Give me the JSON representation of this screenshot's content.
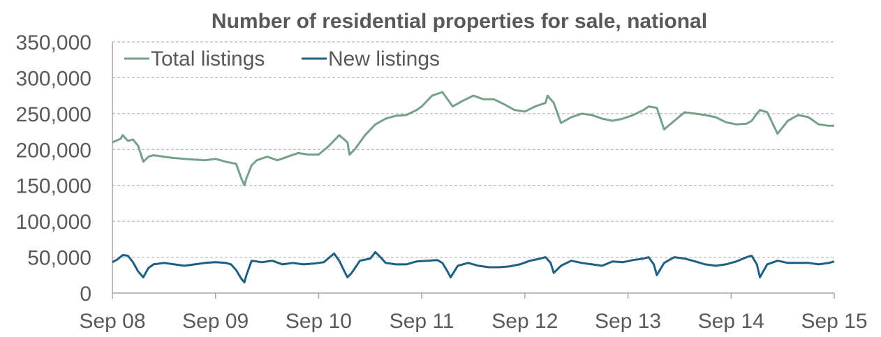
{
  "chart_data": {
    "type": "line",
    "title": "Number of residential properties for sale, national",
    "xlabel": "",
    "ylabel": "",
    "ylim": [
      0,
      350000
    ],
    "yticks": [
      0,
      50000,
      100000,
      150000,
      200000,
      250000,
      300000,
      350000
    ],
    "ytick_labels": [
      "0",
      "50,000",
      "100,000",
      "150,000",
      "200,000",
      "250,000",
      "300,000",
      "350,000"
    ],
    "xlim": [
      0,
      7
    ],
    "xtick_labels": [
      "Sep 08",
      "Sep 09",
      "Sep 10",
      "Sep 11",
      "Sep 12",
      "Sep 13",
      "Sep 14",
      "Sep 15"
    ],
    "grid": true,
    "legend_position": "top-left",
    "series": [
      {
        "name": "Total listings",
        "color": "#76a08a",
        "x": [
          0.0,
          0.08,
          0.1,
          0.15,
          0.2,
          0.25,
          0.3,
          0.35,
          0.4,
          0.5,
          0.6,
          0.7,
          0.8,
          0.9,
          1.0,
          1.1,
          1.2,
          1.25,
          1.28,
          1.3,
          1.35,
          1.4,
          1.5,
          1.6,
          1.7,
          1.8,
          1.9,
          2.0,
          2.1,
          2.2,
          2.28,
          2.3,
          2.35,
          2.45,
          2.55,
          2.65,
          2.75,
          2.85,
          2.95,
          3.0,
          3.1,
          3.2,
          3.3,
          3.4,
          3.5,
          3.6,
          3.7,
          3.8,
          3.9,
          4.0,
          4.1,
          4.2,
          4.22,
          4.28,
          4.35,
          4.45,
          4.55,
          4.65,
          4.75,
          4.85,
          4.95,
          5.05,
          5.15,
          5.2,
          5.28,
          5.35,
          5.45,
          5.55,
          5.65,
          5.75,
          5.85,
          5.95,
          6.05,
          6.15,
          6.2,
          6.25,
          6.28,
          6.35,
          6.45,
          6.55,
          6.65,
          6.75,
          6.85,
          6.95,
          7.0
        ],
        "y": [
          210000,
          215000,
          220000,
          212000,
          214000,
          205000,
          183000,
          190000,
          192000,
          190000,
          188000,
          187000,
          186000,
          185000,
          187000,
          183000,
          180000,
          160000,
          150000,
          160000,
          178000,
          185000,
          190000,
          185000,
          190000,
          195000,
          193000,
          193000,
          205000,
          220000,
          210000,
          193000,
          200000,
          220000,
          235000,
          243000,
          247000,
          248000,
          255000,
          260000,
          275000,
          280000,
          260000,
          268000,
          275000,
          270000,
          270000,
          263000,
          255000,
          253000,
          260000,
          265000,
          275000,
          265000,
          237000,
          245000,
          250000,
          248000,
          243000,
          240000,
          243000,
          248000,
          255000,
          260000,
          258000,
          228000,
          240000,
          252000,
          250000,
          248000,
          245000,
          238000,
          235000,
          236000,
          240000,
          250000,
          255000,
          252000,
          222000,
          240000,
          248000,
          245000,
          235000,
          233000,
          233000
        ]
      },
      {
        "name": "New listings",
        "color": "#1f5f82",
        "x": [
          0.0,
          0.05,
          0.1,
          0.15,
          0.2,
          0.25,
          0.3,
          0.35,
          0.4,
          0.5,
          0.6,
          0.7,
          0.8,
          0.9,
          1.0,
          1.1,
          1.15,
          1.2,
          1.25,
          1.28,
          1.3,
          1.35,
          1.45,
          1.55,
          1.65,
          1.75,
          1.85,
          1.95,
          2.05,
          2.15,
          2.2,
          2.25,
          2.28,
          2.32,
          2.4,
          2.5,
          2.55,
          2.6,
          2.65,
          2.75,
          2.85,
          2.95,
          3.05,
          3.15,
          3.2,
          3.25,
          3.28,
          3.35,
          3.45,
          3.55,
          3.65,
          3.75,
          3.85,
          3.95,
          4.05,
          4.15,
          4.2,
          4.25,
          4.28,
          4.35,
          4.45,
          4.55,
          4.65,
          4.75,
          4.85,
          4.95,
          5.05,
          5.15,
          5.2,
          5.25,
          5.28,
          5.35,
          5.45,
          5.55,
          5.65,
          5.75,
          5.85,
          5.95,
          6.05,
          6.15,
          6.2,
          6.25,
          6.28,
          6.35,
          6.45,
          6.55,
          6.65,
          6.75,
          6.85,
          6.95,
          7.0
        ],
        "y": [
          43000,
          47000,
          53000,
          52000,
          43000,
          30000,
          22000,
          35000,
          40000,
          42000,
          40000,
          38000,
          40000,
          42000,
          43000,
          42000,
          40000,
          32000,
          20000,
          15000,
          25000,
          45000,
          43000,
          45000,
          40000,
          42000,
          40000,
          41000,
          43000,
          55000,
          45000,
          30000,
          22000,
          28000,
          45000,
          48000,
          57000,
          50000,
          42000,
          40000,
          40000,
          44000,
          45000,
          46000,
          42000,
          30000,
          22000,
          38000,
          42000,
          38000,
          36000,
          36000,
          37000,
          40000,
          45000,
          48000,
          50000,
          42000,
          28000,
          38000,
          45000,
          42000,
          40000,
          38000,
          44000,
          43000,
          46000,
          48000,
          50000,
          40000,
          25000,
          42000,
          50000,
          48000,
          44000,
          40000,
          38000,
          40000,
          44000,
          50000,
          52000,
          40000,
          22000,
          40000,
          45000,
          42000,
          42000,
          42000,
          40000,
          42000,
          44000
        ]
      }
    ]
  }
}
